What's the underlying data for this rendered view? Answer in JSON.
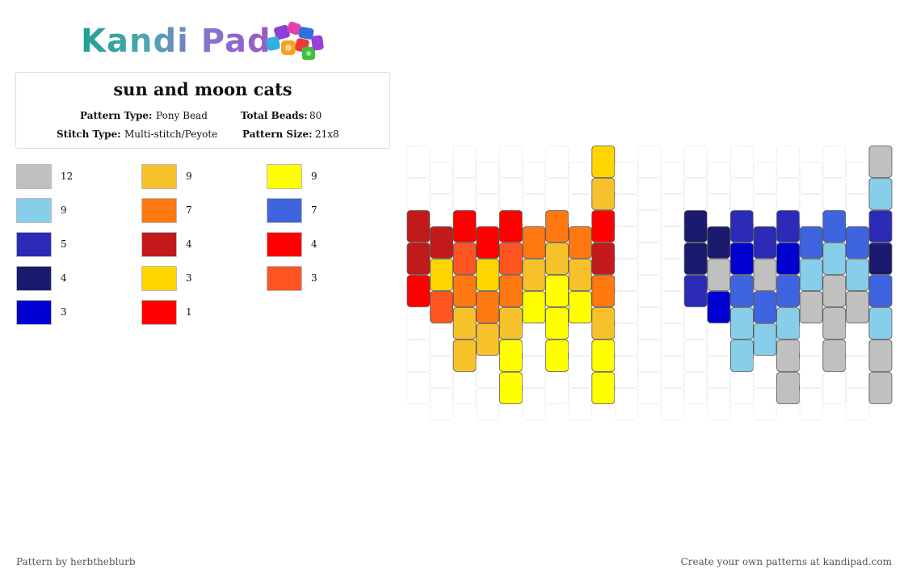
{
  "logo": {
    "text": "Kandi Pad"
  },
  "pattern": {
    "title": "sun and moon cats",
    "labels": {
      "pattern_type": "Pattern Type:",
      "total_beads": "Total Beads:",
      "stitch_type": "Stitch Type:",
      "pattern_size": "Pattern Size:"
    },
    "values": {
      "pattern_type": "Pony Bead",
      "total_beads": "80",
      "stitch_type": "Multi-stitch/Peyote",
      "pattern_size": "21x8"
    }
  },
  "palette": [
    {
      "color": "#c0c0c0",
      "count": "12"
    },
    {
      "color": "#f7c12c",
      "count": "9"
    },
    {
      "color": "#ffff00",
      "count": "9"
    },
    {
      "color": "#87ceeb",
      "count": "9"
    },
    {
      "color": "#ff7810",
      "count": "7"
    },
    {
      "color": "#3e64e0",
      "count": "7"
    },
    {
      "color": "#2b2bb8",
      "count": "5"
    },
    {
      "color": "#c21a1a",
      "count": "4"
    },
    {
      "color": "#ff0000",
      "count": "4"
    },
    {
      "color": "#1a1a6e",
      "count": "4"
    },
    {
      "color": "#ffd500",
      "count": "3"
    },
    {
      "color": "#ff5520",
      "count": "3"
    },
    {
      "color": "#0000d0",
      "count": "3"
    },
    {
      "color": "#ff0000",
      "count": "1"
    }
  ],
  "beads": {
    "0": {
      "2": "#c21a1a",
      "3": "#c21a1a",
      "4": "#ff0000"
    },
    "1": {
      "2": "#c21a1a",
      "3": "#ffd500",
      "4": "#ff5520"
    },
    "2": {
      "2": "#ff0000",
      "3": "#ff5520",
      "4": "#ff7810",
      "5": "#f7c12c",
      "6": "#f7c12c"
    },
    "3": {
      "2": "#ff0000",
      "3": "#ffd500",
      "4": "#ff7810",
      "5": "#f7c12c"
    },
    "4": {
      "2": "#ff0000",
      "3": "#ff5520",
      "4": "#ff7810",
      "5": "#f7c12c",
      "6": "#ffff00",
      "7": "#ffff00"
    },
    "5": {
      "2": "#ff7810",
      "3": "#f7c12c",
      "4": "#ffff00"
    },
    "6": {
      "2": "#ff7810",
      "3": "#f7c12c",
      "4": "#ffff00",
      "5": "#ffff00",
      "6": "#ffff00"
    },
    "7": {
      "2": "#ff7810",
      "3": "#f7c12c",
      "4": "#ffff00"
    },
    "8": {
      "0": "#ffd500",
      "1": "#f7c12c",
      "2": "#ff0000",
      "3": "#c21a1a",
      "4": "#ff7810",
      "5": "#f7c12c",
      "6": "#ffff00",
      "7": "#ffff00"
    },
    "12": {
      "2": "#1a1a6e",
      "3": "#1a1a6e",
      "4": "#2b2bb8"
    },
    "13": {
      "2": "#1a1a6e",
      "3": "#c0c0c0",
      "4": "#0000d0"
    },
    "14": {
      "2": "#2b2bb8",
      "3": "#0000d0",
      "4": "#3e64e0",
      "5": "#87ceeb",
      "6": "#87ceeb"
    },
    "15": {
      "2": "#2b2bb8",
      "3": "#c0c0c0",
      "4": "#3e64e0",
      "5": "#87ceeb"
    },
    "16": {
      "2": "#2b2bb8",
      "3": "#0000d0",
      "4": "#3e64e0",
      "5": "#87ceeb",
      "6": "#c0c0c0",
      "7": "#c0c0c0"
    },
    "17": {
      "2": "#3e64e0",
      "3": "#87ceeb",
      "4": "#c0c0c0"
    },
    "18": {
      "2": "#3e64e0",
      "3": "#87ceeb",
      "4": "#c0c0c0",
      "5": "#c0c0c0",
      "6": "#c0c0c0"
    },
    "19": {
      "2": "#3e64e0",
      "3": "#87ceeb",
      "4": "#c0c0c0"
    },
    "20": {
      "0": "#c0c0c0",
      "1": "#87ceeb",
      "2": "#2b2bb8",
      "3": "#1a1a6e",
      "4": "#3e64e0",
      "5": "#87ceeb",
      "6": "#c0c0c0",
      "7": "#c0c0c0"
    }
  },
  "footer": {
    "left": "Pattern by herbtheblurb",
    "right": "Create your own patterns at kandipad.com"
  }
}
